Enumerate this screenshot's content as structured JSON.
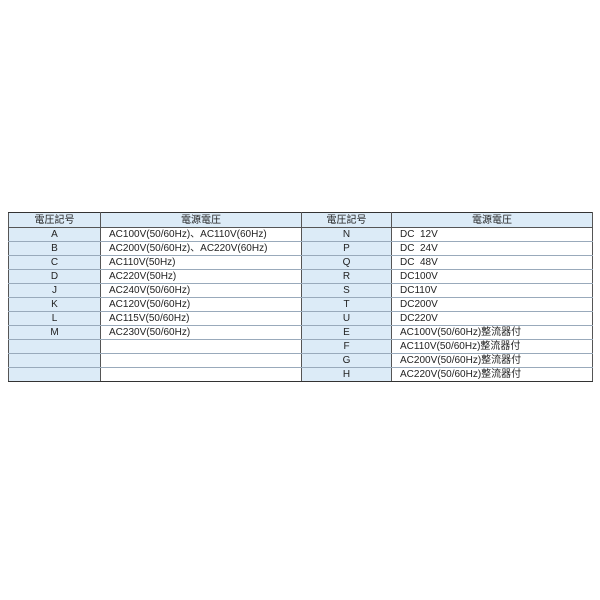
{
  "headers": [
    "電圧記号",
    "電源電圧",
    "電圧記号",
    "電源電圧"
  ],
  "left": [
    {
      "code": "A",
      "voltage": "AC100V(50/60Hz)、AC110V(60Hz)"
    },
    {
      "code": "B",
      "voltage": "AC200V(50/60Hz)、AC220V(60Hz)"
    },
    {
      "code": "C",
      "voltage": "AC110V(50Hz)"
    },
    {
      "code": "D",
      "voltage": "AC220V(50Hz)"
    },
    {
      "code": "J",
      "voltage": "AC240V(50/60Hz)"
    },
    {
      "code": "K",
      "voltage": "AC120V(50/60Hz)"
    },
    {
      "code": "L",
      "voltage": "AC115V(50/60Hz)"
    },
    {
      "code": "M",
      "voltage": "AC230V(50/60Hz)"
    },
    {
      "code": "",
      "voltage": ""
    },
    {
      "code": "",
      "voltage": ""
    },
    {
      "code": "",
      "voltage": ""
    }
  ],
  "right": [
    {
      "code": "N",
      "voltage": "DC  12V"
    },
    {
      "code": "P",
      "voltage": "DC  24V"
    },
    {
      "code": "Q",
      "voltage": "DC  48V"
    },
    {
      "code": "R",
      "voltage": "DC100V"
    },
    {
      "code": "S",
      "voltage": "DC110V"
    },
    {
      "code": "T",
      "voltage": "DC200V"
    },
    {
      "code": "U",
      "voltage": "DC220V"
    },
    {
      "code": "E",
      "voltage": "AC100V(50/60Hz)整流器付"
    },
    {
      "code": "F",
      "voltage": "AC110V(50/60Hz)整流器付"
    },
    {
      "code": "G",
      "voltage": "AC200V(50/60Hz)整流器付"
    },
    {
      "code": "H",
      "voltage": "AC220V(50/60Hz)整流器付"
    }
  ]
}
